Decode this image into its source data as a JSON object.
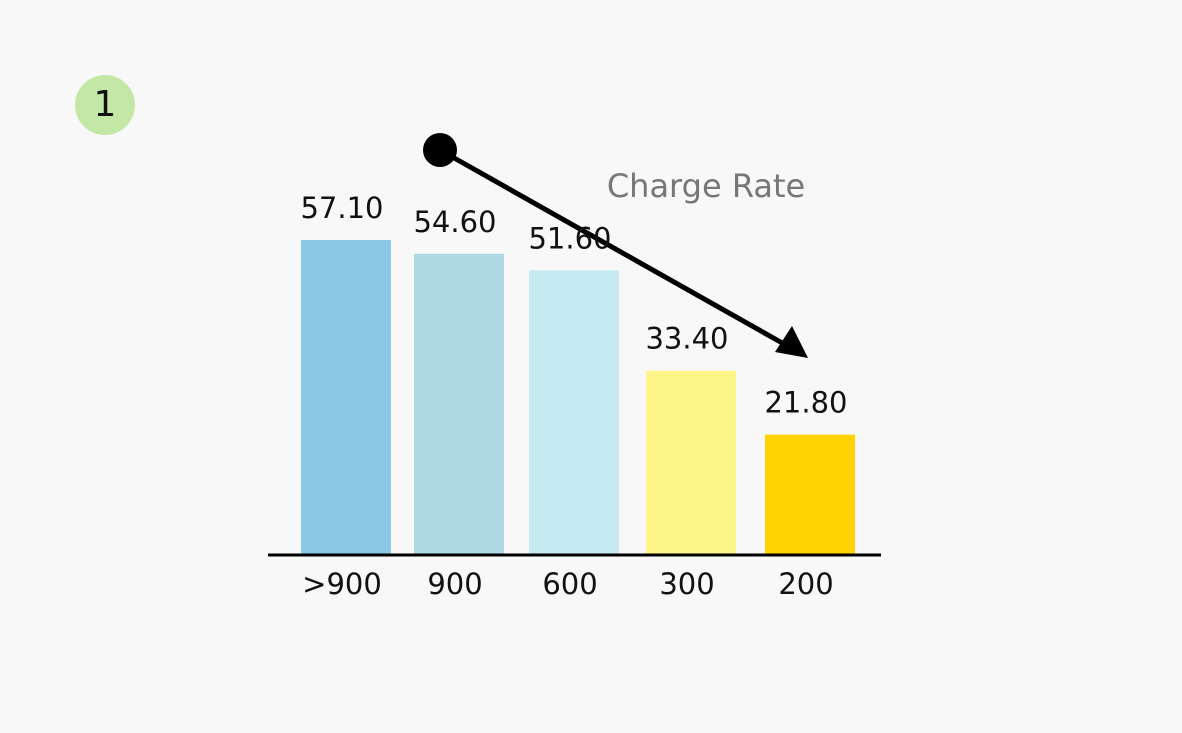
{
  "chart_data": {
    "type": "bar",
    "panel_label": "1",
    "annotation": "Charge Rate",
    "categories": [
      ">900",
      "900",
      "600",
      "300",
      "200"
    ],
    "values": [
      57.1,
      54.6,
      51.6,
      33.4,
      21.8
    ],
    "value_labels": [
      "57.10",
      "54.60",
      "51.60",
      "33.40",
      "21.80"
    ],
    "colors": [
      "#8ac8e5",
      "#add8e4",
      "#c6eaf2",
      "#fff689",
      "#ffd300"
    ],
    "ylim": [
      0,
      60
    ]
  }
}
